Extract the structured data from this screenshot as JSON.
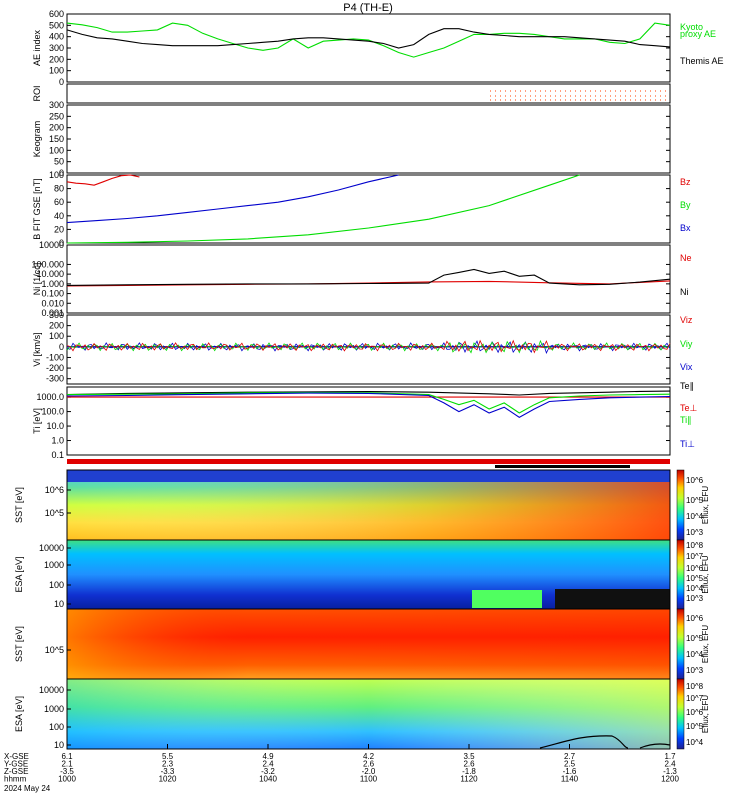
{
  "title": "P4 (TH-E)",
  "colors": {
    "green": "#00dd00",
    "red": "#e00000",
    "blue": "#0000cc",
    "black": "#000000"
  },
  "chart_data": [
    {
      "id": "ae",
      "type": "line",
      "ylabel": "AE index",
      "ylim": [
        0,
        600
      ],
      "yticks": [
        "0",
        "100",
        "200",
        "300",
        "400",
        "500",
        "600"
      ],
      "series": [
        {
          "name": "Kyoto proxy AE",
          "color": "#00dd00",
          "x": [
            0,
            5,
            10,
            15,
            20,
            25,
            30,
            35,
            40,
            45,
            50,
            55,
            60,
            65,
            70,
            75,
            80,
            85,
            90,
            95,
            100,
            105,
            110,
            115,
            120,
            125,
            130,
            135,
            140,
            145,
            150,
            155,
            160,
            165,
            170,
            175,
            180,
            185,
            190,
            195,
            200
          ],
          "values": [
            520,
            505,
            480,
            440,
            440,
            450,
            460,
            520,
            500,
            430,
            380,
            340,
            300,
            280,
            300,
            380,
            300,
            360,
            370,
            380,
            370,
            320,
            260,
            220,
            260,
            300,
            360,
            420,
            420,
            430,
            430,
            420,
            400,
            380,
            380,
            380,
            350,
            340,
            380,
            520,
            500
          ]
        },
        {
          "name": "Themis AE",
          "color": "#000000",
          "x": [
            0,
            5,
            10,
            15,
            20,
            25,
            30,
            35,
            40,
            45,
            50,
            55,
            60,
            65,
            70,
            75,
            80,
            85,
            90,
            95,
            100,
            105,
            110,
            115,
            120,
            125,
            130,
            135,
            140,
            145,
            150,
            155,
            160,
            165,
            170,
            175,
            180,
            185,
            190,
            195,
            200
          ],
          "values": [
            460,
            420,
            390,
            380,
            360,
            340,
            330,
            320,
            320,
            320,
            320,
            330,
            340,
            350,
            360,
            380,
            390,
            390,
            380,
            370,
            360,
            340,
            300,
            330,
            420,
            470,
            470,
            440,
            420,
            410,
            400,
            400,
            400,
            400,
            390,
            380,
            370,
            360,
            330,
            320,
            310
          ]
        }
      ]
    },
    {
      "id": "roi",
      "type": "line",
      "ylabel": "ROI",
      "ylim": [
        0,
        1
      ],
      "yticks": []
    },
    {
      "id": "keogram",
      "type": "line",
      "ylabel": "Keogram",
      "ylim": [
        0,
        300
      ],
      "yticks": [
        "0",
        "50",
        "100",
        "150",
        "200",
        "250",
        "300"
      ]
    },
    {
      "id": "bfield",
      "type": "line",
      "ylabel": "B FIT GSE [nT]",
      "ylim": [
        0,
        100
      ],
      "yticks": [
        "0",
        "20",
        "40",
        "60",
        "80",
        "100"
      ],
      "series": [
        {
          "name": "Bz",
          "color": "#e00000",
          "x": [
            0,
            3,
            6,
            9,
            12,
            15,
            18,
            21,
            24
          ],
          "values": [
            90,
            88,
            87,
            85,
            90,
            95,
            99,
            100,
            97
          ]
        },
        {
          "name": "By",
          "color": "#00dd00",
          "x": [
            0,
            20,
            40,
            60,
            80,
            100,
            120,
            140,
            160,
            170
          ],
          "values": [
            0,
            1,
            3,
            6,
            12,
            22,
            35,
            55,
            85,
            100
          ]
        },
        {
          "name": "Bx",
          "color": "#0000cc",
          "x": [
            0,
            10,
            20,
            30,
            40,
            50,
            60,
            70,
            80,
            90,
            100,
            110
          ],
          "values": [
            30,
            33,
            36,
            40,
            45,
            50,
            55,
            60,
            68,
            78,
            90,
            100
          ]
        }
      ]
    },
    {
      "id": "density",
      "type": "line",
      "ylabel": "Ni [1/cc]",
      "scale": "log",
      "ylim": [
        0.001,
        10000
      ],
      "yticks": [
        "0.001",
        "0.010",
        "0.100",
        "1.000",
        "10.000",
        "100.000",
        "10000"
      ],
      "series": [
        {
          "name": "Ne",
          "color": "#e00000",
          "x": [
            0,
            20,
            40,
            60,
            80,
            100,
            120,
            140,
            160,
            180,
            200
          ],
          "values": [
            0.6,
            0.7,
            0.8,
            0.9,
            1.0,
            1.2,
            1.6,
            1.8,
            1.3,
            1.0,
            2.0
          ]
        },
        {
          "name": "Ni",
          "color": "#000000",
          "x": [
            0,
            20,
            40,
            60,
            80,
            100,
            120,
            125,
            130,
            135,
            140,
            145,
            150,
            155,
            160,
            170,
            180,
            190,
            200
          ],
          "values": [
            0.7,
            0.8,
            0.9,
            1.0,
            1.0,
            1.1,
            1.2,
            8,
            15,
            30,
            12,
            20,
            6,
            8,
            1.2,
            0.8,
            0.9,
            1.5,
            3
          ]
        }
      ]
    },
    {
      "id": "velocity",
      "type": "line",
      "ylabel": "Vi [km/s]",
      "ylim": [
        -350,
        300
      ],
      "yticks": [
        "-300",
        "-200",
        "-100",
        "0",
        "100",
        "200",
        "300"
      ],
      "series": [
        {
          "name": "Viz",
          "color": "#e00000",
          "x": [
            0,
            200
          ],
          "values": [
            0,
            0
          ]
        },
        {
          "name": "Viy",
          "color": "#00dd00",
          "x": [
            0,
            200
          ],
          "values": [
            0,
            0
          ]
        },
        {
          "name": "Vix",
          "color": "#0000cc",
          "x": [
            0,
            200
          ],
          "values": [
            0,
            0
          ]
        }
      ]
    },
    {
      "id": "temperature",
      "type": "line",
      "ylabel": "Ti [eV]",
      "scale": "log",
      "ylim": [
        0.1,
        5000
      ],
      "yticks": [
        "0.1",
        "1.0",
        "10.0",
        "100.0",
        "1000.0"
      ],
      "series": [
        {
          "name": "Te∥",
          "color": "#000000",
          "x": [
            0,
            20,
            40,
            60,
            80,
            100,
            120,
            140,
            150,
            160,
            170,
            180,
            190,
            200
          ],
          "values": [
            1500,
            1800,
            2000,
            2200,
            2300,
            2400,
            2200,
            1700,
            1400,
            1800,
            2000,
            2200,
            2500,
            2600
          ]
        },
        {
          "name": "Te⊥",
          "color": "#e00000",
          "x": [
            0,
            200
          ],
          "values": [
            1000,
            1000
          ]
        },
        {
          "name": "Ti∥",
          "color": "#00dd00",
          "x": [
            0,
            20,
            40,
            60,
            80,
            100,
            120,
            125,
            130,
            135,
            140,
            145,
            150,
            155,
            160,
            170,
            180,
            190,
            200
          ],
          "values": [
            1500,
            1600,
            1700,
            2000,
            2100,
            2000,
            1500,
            700,
            300,
            600,
            150,
            400,
            80,
            300,
            900,
            1200,
            1400,
            1500,
            1600
          ]
        },
        {
          "name": "Ti⊥",
          "color": "#0000cc",
          "x": [
            0,
            20,
            40,
            60,
            80,
            100,
            120,
            125,
            130,
            135,
            140,
            145,
            150,
            155,
            160,
            170,
            180,
            190,
            200
          ],
          "values": [
            1200,
            1300,
            1500,
            1700,
            1900,
            1800,
            1300,
            400,
            100,
            300,
            80,
            200,
            40,
            150,
            500,
            700,
            900,
            1000,
            1100
          ]
        }
      ]
    },
    {
      "id": "sst_e",
      "type": "heatmap",
      "ylabel": "SST [eV]",
      "yticks": [
        "10^5",
        "10^6"
      ],
      "colorbar": [
        "10^3",
        "10^4",
        "10^5",
        "10^6"
      ],
      "clabel": "Eflux, EFU"
    },
    {
      "id": "esa_e",
      "type": "heatmap",
      "ylabel": "ESA [eV]",
      "yticks": [
        "10",
        "100",
        "1000",
        "10000"
      ],
      "colorbar": [
        "10^3",
        "10^4",
        "10^5",
        "10^6",
        "10^7",
        "10^8"
      ],
      "clabel": "Eflux, EFU"
    },
    {
      "id": "sst_i",
      "type": "heatmap",
      "ylabel": "SST [eV]",
      "yticks": [
        "10^5"
      ],
      "colorbar": [
        "10^3",
        "10^4",
        "10^5",
        "10^6"
      ],
      "clabel": "Eflux, EFU"
    },
    {
      "id": "esa_i",
      "type": "heatmap",
      "ylabel": "ESA [eV]",
      "yticks": [
        "10",
        "100",
        "1000",
        "10000"
      ],
      "colorbar": [
        "10^4",
        "10^5",
        "10^6",
        "10^7",
        "10^8"
      ],
      "clabel": "Eflux, EFU"
    }
  ],
  "right_labels": {
    "ae": [
      "Kyoto",
      "proxy AE",
      "Themis AE"
    ],
    "bfield": [
      "Bz",
      "By",
      "Bx"
    ],
    "density": [
      "Ne",
      "Ni"
    ],
    "velocity": [
      "Viz",
      "Viy",
      "Vix"
    ],
    "temperature": [
      "Te∥",
      "Te⊥",
      "Ti∥",
      "Ti⊥"
    ]
  },
  "orbit": {
    "row_labels": [
      "X-GSE",
      "Y-GSE",
      "Z-GSE",
      "hhmm"
    ],
    "date": "2024 May 24",
    "columns": [
      {
        "x": "6.1",
        "y": "2.1",
        "z": "-3.5",
        "t": "1000"
      },
      {
        "x": "5.5",
        "y": "2.3",
        "z": "-3.3",
        "t": "1020"
      },
      {
        "x": "4.9",
        "y": "2.4",
        "z": "-3.2",
        "t": "1040"
      },
      {
        "x": "4.2",
        "y": "2.6",
        "z": "-2.0",
        "t": "1100"
      },
      {
        "x": "3.5",
        "y": "2.6",
        "z": "-1.8",
        "t": "1120"
      },
      {
        "x": "2.7",
        "y": "2.5",
        "z": "-1.6",
        "t": "1140"
      },
      {
        "x": "1.7",
        "y": "2.4",
        "z": "-1.3",
        "t": "1200"
      }
    ]
  }
}
